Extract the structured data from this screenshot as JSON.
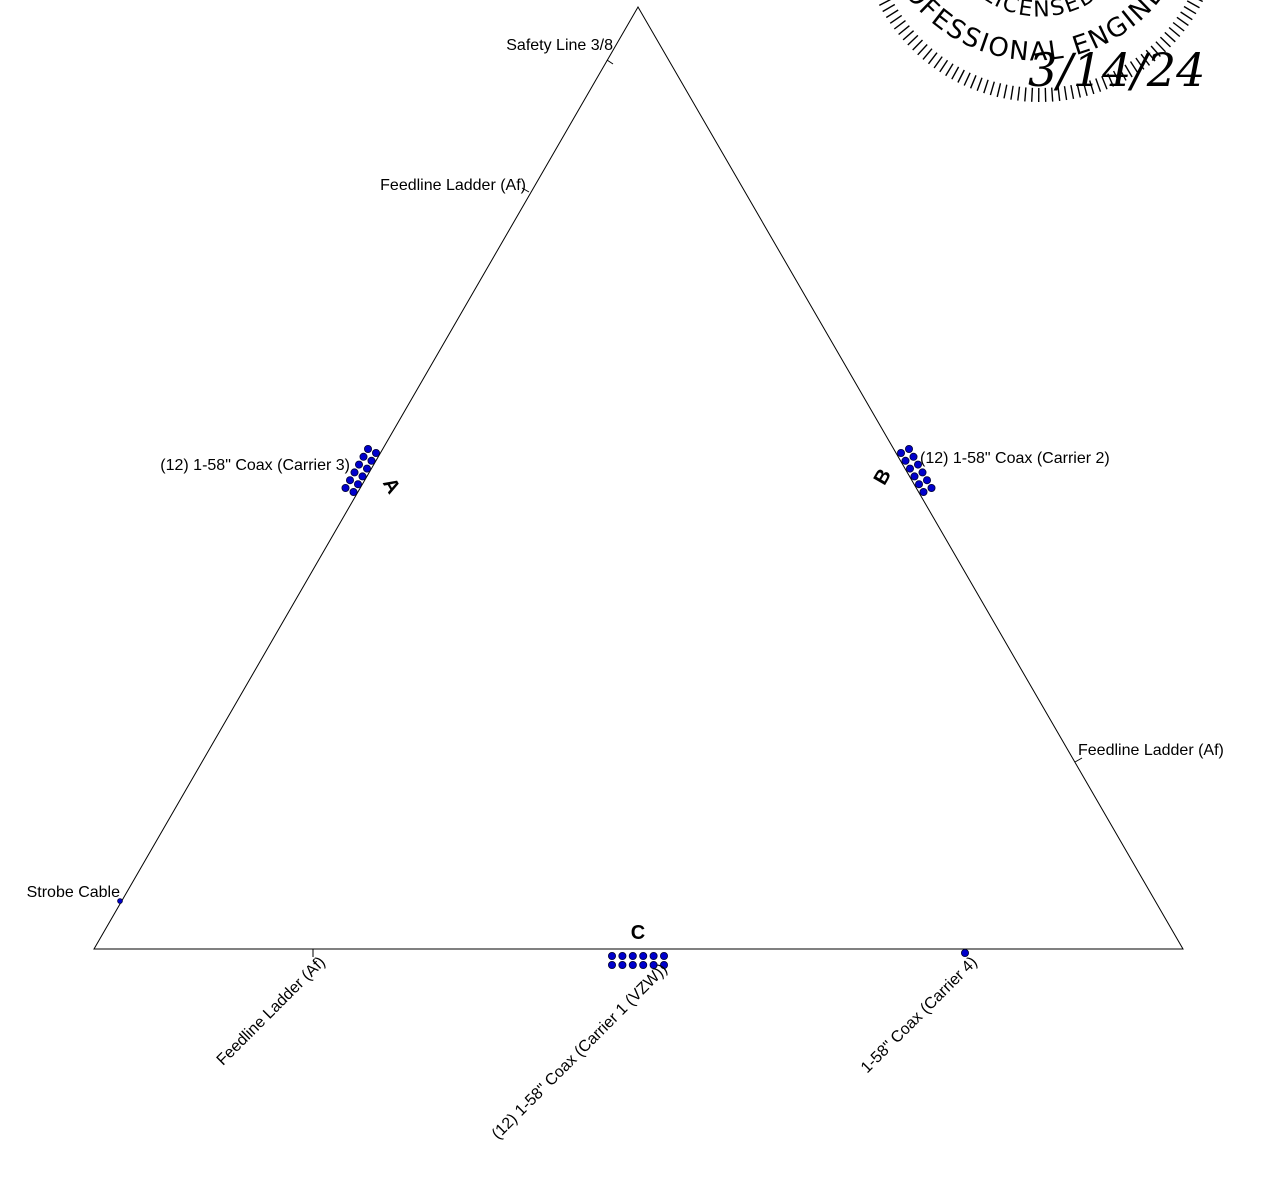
{
  "faces": {
    "a": "A",
    "b": "B",
    "c": "C"
  },
  "labels": {
    "safety_line": "Safety Line 3/8",
    "feedline_ladder_a": "Feedline Ladder (Af)",
    "coax_carrier3": "(12) 1-58\" Coax (Carrier 3)",
    "coax_carrier2": "(12) 1-58\" Coax (Carrier 2)",
    "feedline_ladder_b": "Feedline Ladder (Af)",
    "strobe_cable": "Strobe Cable",
    "feedline_ladder_c": "Feedline Ladder (Af)",
    "coax_carrier1": "(12) 1-58\" Coax (Carrier 1 (VZW))",
    "coax_carrier4": "1-58\" Coax (Carrier 4)"
  },
  "seal": {
    "text_line1": "LICENSED",
    "text_line2": "PROFESSIONAL ENGINEER",
    "date": "3/14/24"
  },
  "colors": {
    "coax_fill": "#0000cc",
    "coax_stroke": "#000033",
    "line": "#000000"
  }
}
